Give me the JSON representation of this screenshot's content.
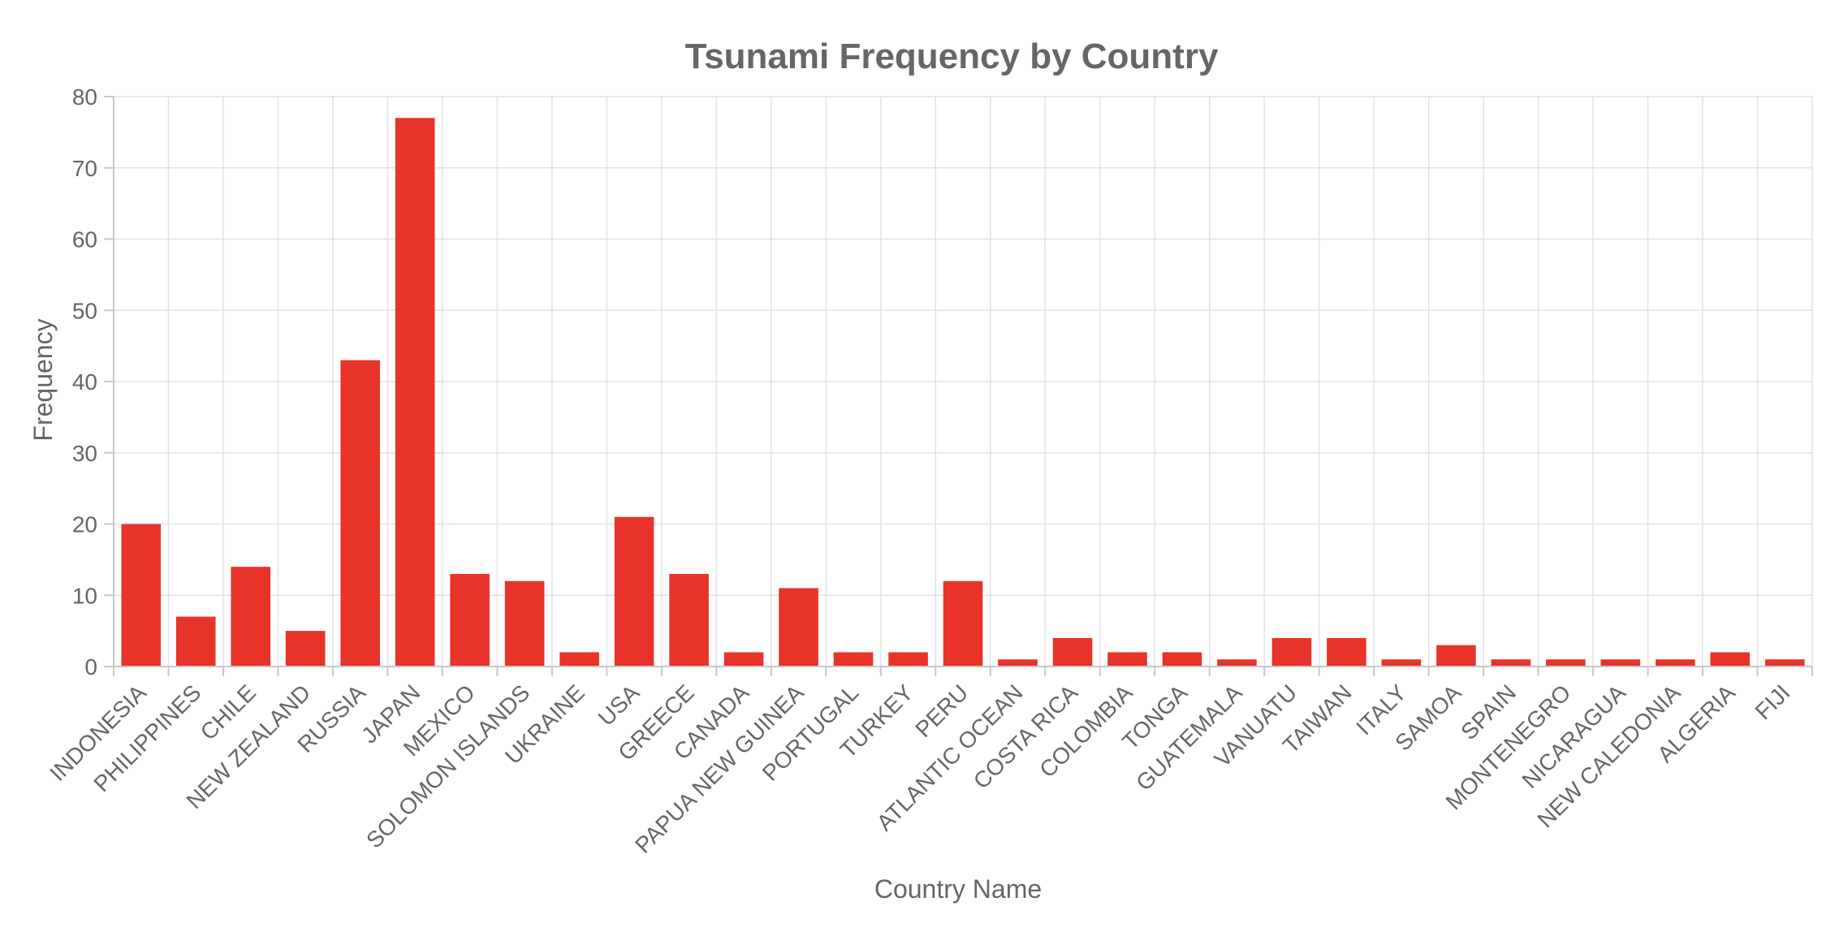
{
  "chart_data": {
    "type": "bar",
    "title": "Tsunami Frequency by Country",
    "xlabel": "Country Name",
    "ylabel": "Frequency",
    "ylim": [
      0,
      80
    ],
    "yticks": [
      0,
      10,
      20,
      30,
      40,
      50,
      60,
      70,
      80
    ],
    "grid": true,
    "bar_color": "#e8332a",
    "categories": [
      "INDONESIA",
      "PHILIPPINES",
      "CHILE",
      "NEW ZEALAND",
      "RUSSIA",
      "JAPAN",
      "MEXICO",
      "SOLOMON ISLANDS",
      "UKRAINE",
      "USA",
      "GREECE",
      "CANADA",
      "PAPUA NEW GUINEA",
      "PORTUGAL",
      "TURKEY",
      "PERU",
      "ATLANTIC OCEAN",
      "COSTA RICA",
      "COLOMBIA",
      "TONGA",
      "GUATEMALA",
      "VANUATU",
      "TAIWAN",
      "ITALY",
      "SAMOA",
      "SPAIN",
      "MONTENEGRO",
      "NICARAGUA",
      "NEW CALEDONIA",
      "ALGERIA",
      "FIJI"
    ],
    "values": [
      20,
      7,
      14,
      5,
      43,
      77,
      13,
      12,
      2,
      21,
      13,
      2,
      11,
      2,
      2,
      12,
      1,
      4,
      2,
      2,
      1,
      4,
      4,
      1,
      3,
      1,
      1,
      1,
      1,
      2,
      1
    ]
  }
}
